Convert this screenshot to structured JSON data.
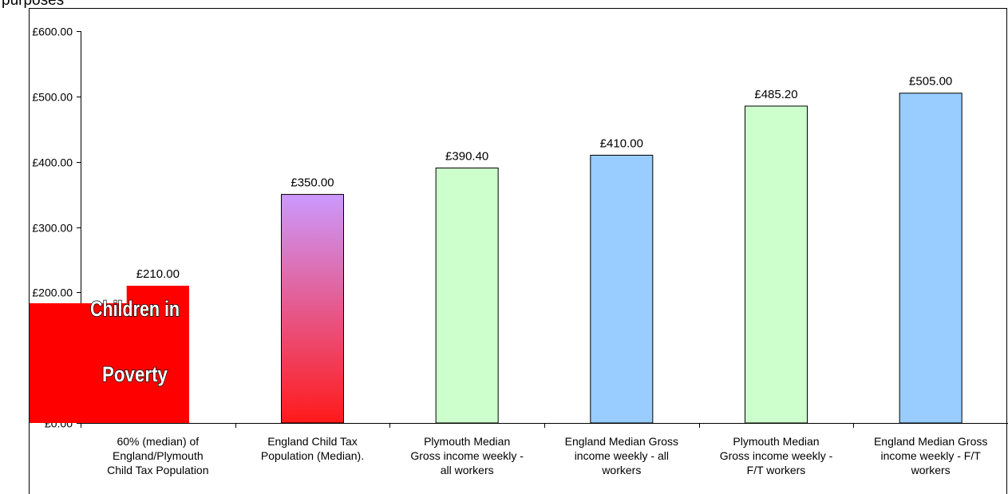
{
  "page_top_text": "purposes",
  "overlay": {
    "lines": [
      "Children in",
      "Poverty"
    ],
    "color": "#ff0000"
  },
  "chart_data": {
    "type": "bar",
    "title": "",
    "xlabel": "",
    "ylabel": "",
    "ylim": [
      0,
      600
    ],
    "y_ticks": [
      0,
      100,
      200,
      300,
      400,
      500,
      600
    ],
    "y_tick_labels": [
      "£0.00",
      "£100.00",
      "£200.00",
      "£300.00",
      "£400.00",
      "£500.00",
      "£600.00"
    ],
    "grid": false,
    "categories": [
      [
        "60% (median) of",
        "England/Plymouth",
        "Child Tax Population"
      ],
      [
        "England Child Tax",
        "Population (Median)."
      ],
      [
        "Plymouth Median",
        "Gross income weekly -",
        "all workers"
      ],
      [
        "England Median Gross",
        "income weekly - all",
        "workers"
      ],
      [
        "Plymouth Median",
        "Gross income weekly -",
        "F/T workers"
      ],
      [
        "England Median Gross",
        "income weekly - F/T",
        "workers"
      ]
    ],
    "values": [
      210,
      350,
      390.4,
      410,
      485.2,
      505
    ],
    "data_labels": [
      "£210.00",
      "£350.00",
      "£390.40",
      "£410.00",
      "£485.20",
      "£505.00"
    ],
    "colors": [
      "#ff0000",
      "gradient-purple-red",
      "#ccffcc",
      "#99ccff",
      "#ccffcc",
      "#99ccff"
    ]
  }
}
